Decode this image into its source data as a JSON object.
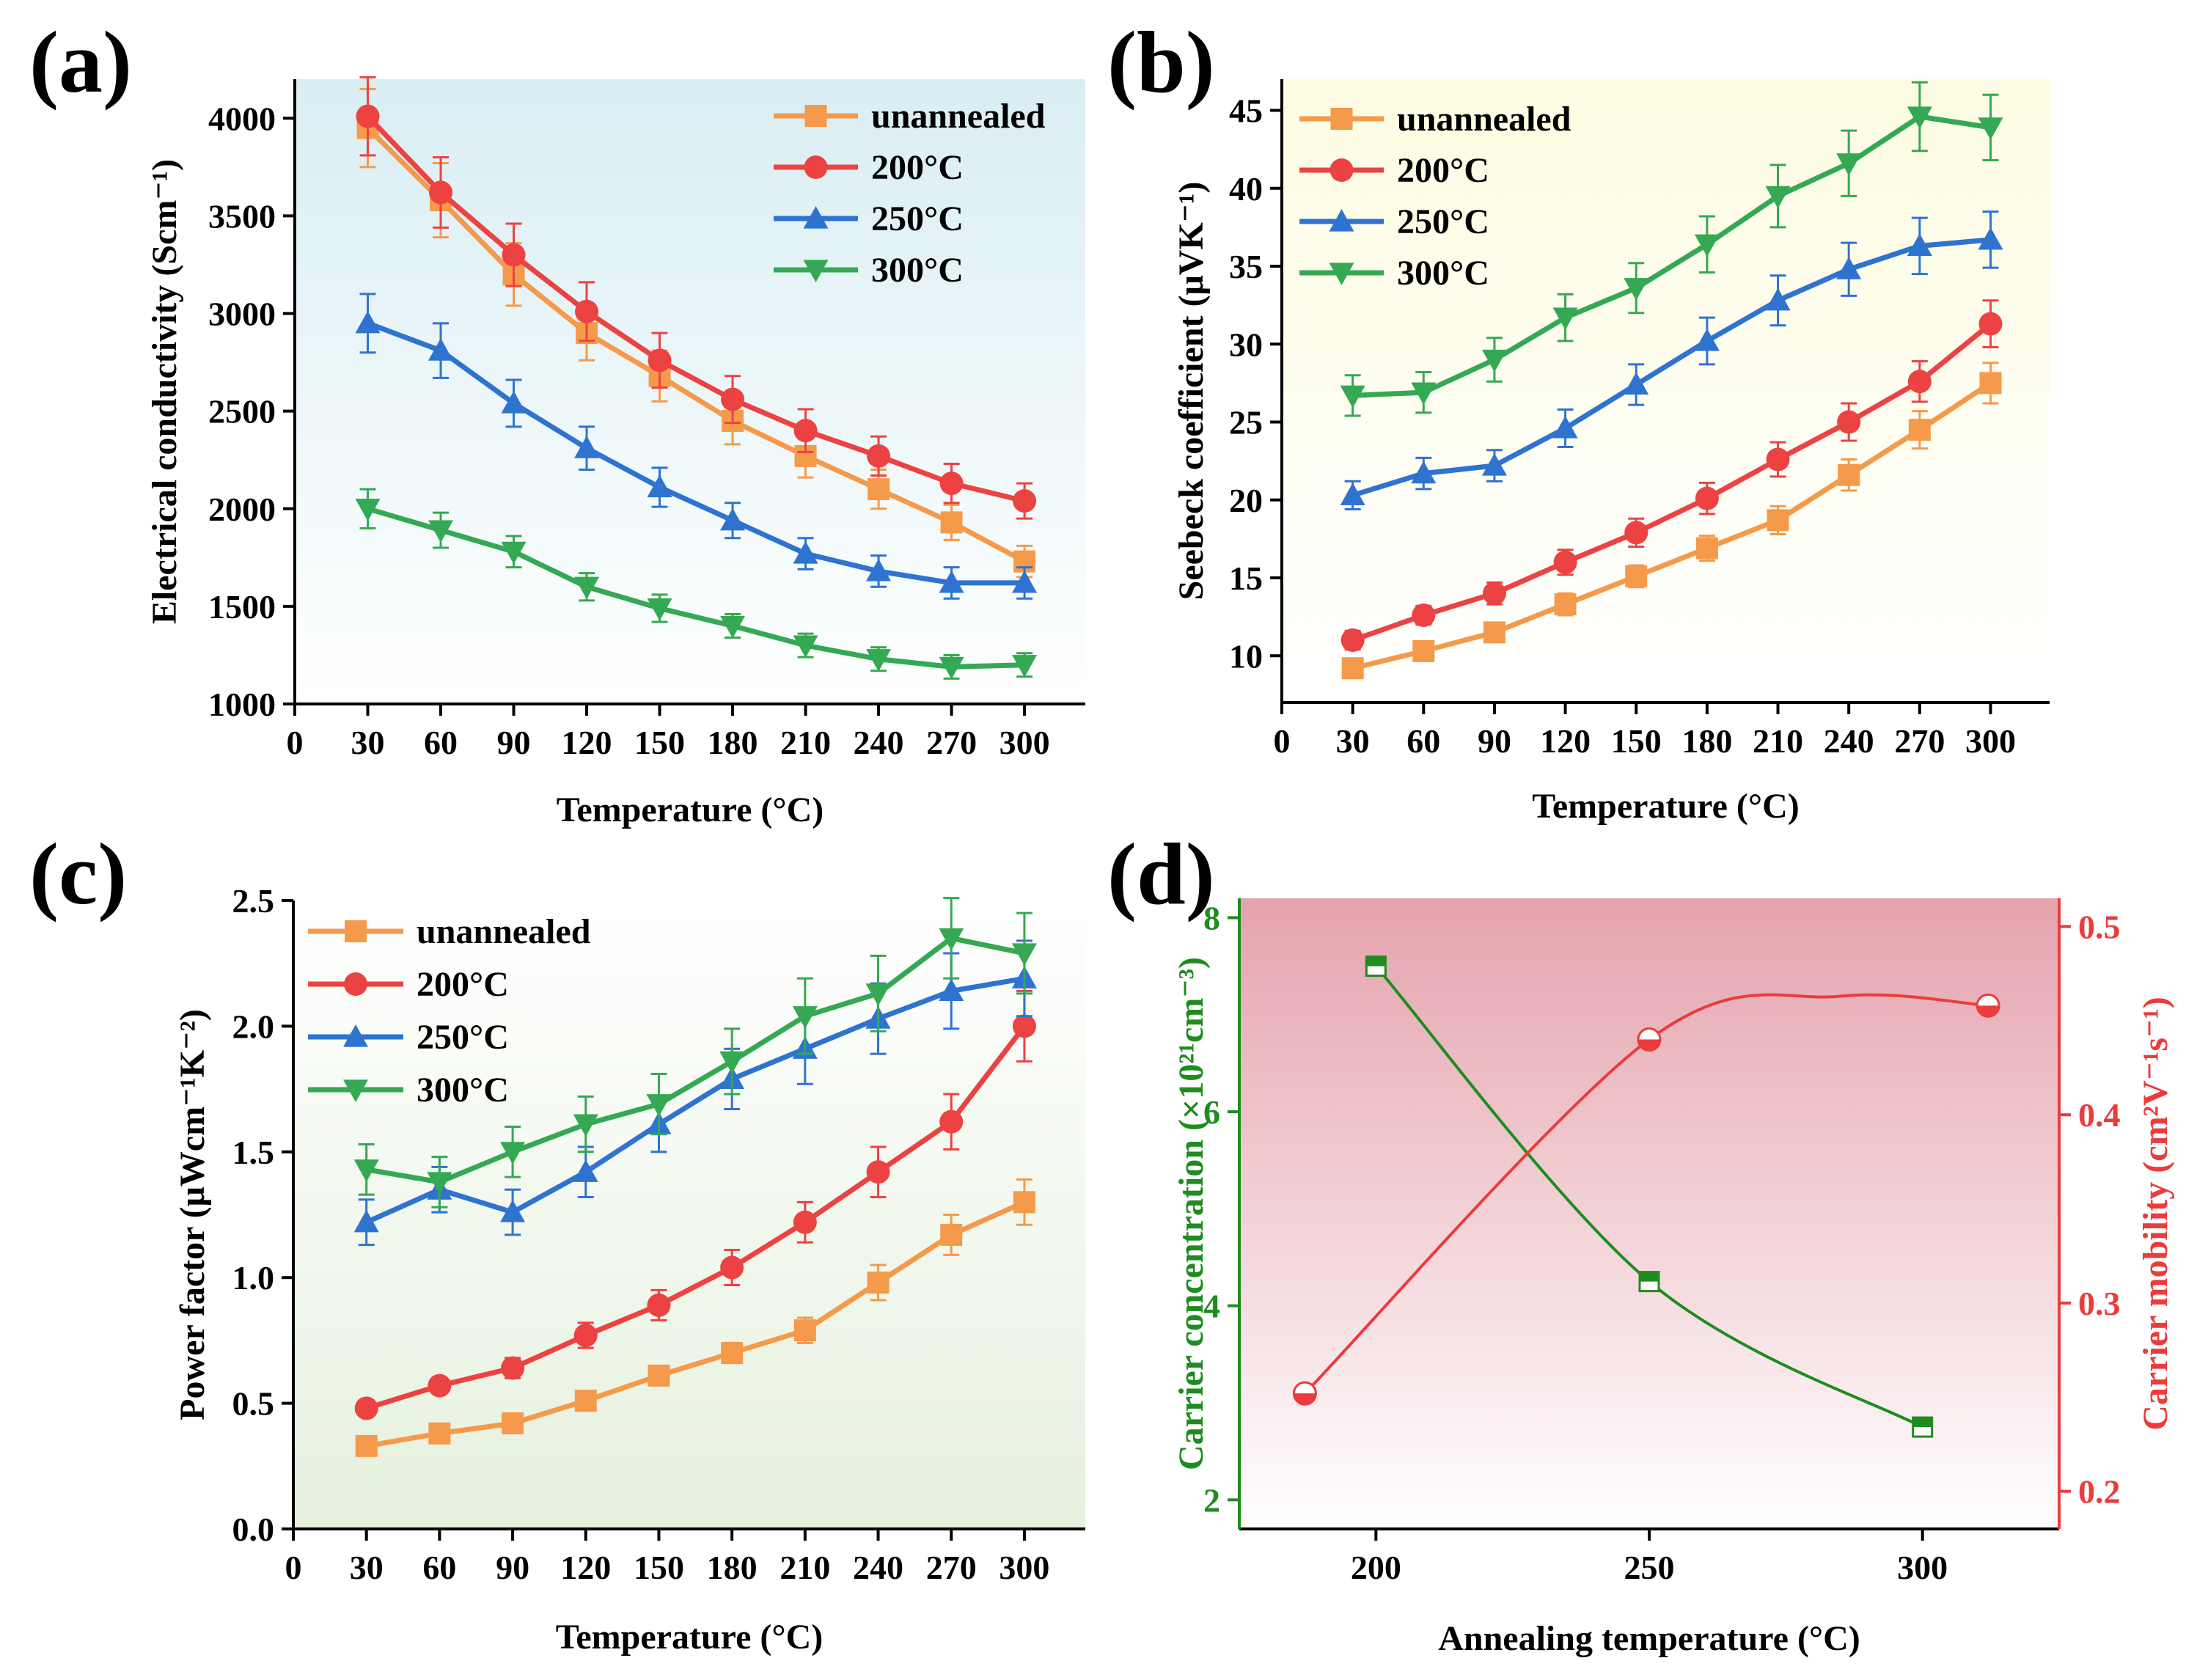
{
  "chart_data": [
    {
      "id": "a",
      "type": "line",
      "panel_label": "(a)",
      "title": "",
      "xlabel": "Temperature (°C)",
      "ylabel": "Electrical conductivity (Scm⁻¹)",
      "xlim": [
        0,
        325
      ],
      "ylim": [
        1000,
        4200
      ],
      "xticks": [
        0,
        30,
        60,
        90,
        120,
        150,
        180,
        210,
        240,
        270,
        300
      ],
      "yticks": [
        1000,
        1500,
        2000,
        2500,
        3000,
        3500,
        4000
      ],
      "legend_position": "top-right",
      "background": "light-blue-gradient",
      "x": [
        30,
        60,
        90,
        120,
        150,
        180,
        210,
        240,
        270,
        300
      ],
      "series": [
        {
          "name": "unannealed",
          "color": "#f59a4a",
          "marker": "square",
          "values": [
            3950,
            3580,
            3200,
            2900,
            2680,
            2450,
            2270,
            2100,
            1930,
            1730
          ],
          "errors": [
            200,
            190,
            160,
            140,
            130,
            120,
            110,
            100,
            90,
            80
          ]
        },
        {
          "name": "200°C",
          "color": "#ec4242",
          "marker": "circle",
          "values": [
            4010,
            3620,
            3300,
            3010,
            2760,
            2560,
            2400,
            2270,
            2130,
            2040
          ],
          "errors": [
            200,
            180,
            160,
            150,
            140,
            120,
            110,
            100,
            100,
            90
          ]
        },
        {
          "name": "250°C",
          "color": "#2f73d0",
          "marker": "triangle-up",
          "values": [
            2950,
            2810,
            2540,
            2310,
            2110,
            1940,
            1770,
            1680,
            1620,
            1620
          ],
          "errors": [
            150,
            140,
            120,
            110,
            100,
            90,
            80,
            80,
            80,
            80
          ]
        },
        {
          "name": "300°C",
          "color": "#35a853",
          "marker": "triangle-down",
          "values": [
            2000,
            1890,
            1780,
            1600,
            1490,
            1400,
            1300,
            1230,
            1190,
            1200
          ],
          "errors": [
            100,
            90,
            80,
            70,
            70,
            60,
            60,
            60,
            60,
            60
          ]
        }
      ]
    },
    {
      "id": "b",
      "type": "line",
      "panel_label": "(b)",
      "title": "",
      "xlabel": "Temperature (°C)",
      "ylabel": "Seebeck coefficient (μVK⁻¹)",
      "xlim": [
        0,
        325
      ],
      "ylim": [
        7,
        47
      ],
      "xticks": [
        0,
        30,
        60,
        90,
        120,
        150,
        180,
        210,
        240,
        270,
        300
      ],
      "yticks": [
        10,
        15,
        20,
        25,
        30,
        35,
        40,
        45
      ],
      "legend_position": "top-left",
      "background": "light-yellow-gradient",
      "x": [
        30,
        60,
        90,
        120,
        150,
        180,
        210,
        240,
        270,
        300
      ],
      "series": [
        {
          "name": "unannealed",
          "color": "#f59a4a",
          "marker": "square",
          "values": [
            9.2,
            10.3,
            11.5,
            13.3,
            15.1,
            16.9,
            18.7,
            21.6,
            24.5,
            27.5
          ],
          "errors": [
            0.6,
            0.6,
            0.6,
            0.7,
            0.7,
            0.8,
            0.9,
            1.0,
            1.2,
            1.3
          ]
        },
        {
          "name": "200°C",
          "color": "#ec4242",
          "marker": "circle",
          "values": [
            11.0,
            12.6,
            14.0,
            16.0,
            17.9,
            20.1,
            22.6,
            25.0,
            27.6,
            31.3
          ],
          "errors": [
            0.6,
            0.6,
            0.7,
            0.8,
            0.9,
            1.0,
            1.1,
            1.2,
            1.3,
            1.5
          ]
        },
        {
          "name": "250°C",
          "color": "#2f73d0",
          "marker": "triangle-up",
          "values": [
            20.3,
            21.7,
            22.2,
            24.6,
            27.4,
            30.2,
            32.8,
            34.8,
            36.3,
            36.7
          ],
          "errors": [
            0.9,
            1.0,
            1.0,
            1.2,
            1.3,
            1.5,
            1.6,
            1.7,
            1.8,
            1.8
          ]
        },
        {
          "name": "300°C",
          "color": "#35a853",
          "marker": "triangle-down",
          "values": [
            26.7,
            26.9,
            29.0,
            31.7,
            33.6,
            36.4,
            39.5,
            41.6,
            44.6,
            43.9
          ],
          "errors": [
            1.3,
            1.3,
            1.4,
            1.5,
            1.6,
            1.8,
            2.0,
            2.1,
            2.2,
            2.1
          ]
        }
      ]
    },
    {
      "id": "c",
      "type": "line",
      "panel_label": "(c)",
      "title": "",
      "xlabel": "Temperature (°C)",
      "ylabel": "Power factor (μWcm⁻¹K⁻²)",
      "xlim": [
        0,
        325
      ],
      "ylim": [
        0,
        2.5
      ],
      "xticks": [
        0,
        30,
        60,
        90,
        120,
        150,
        180,
        210,
        240,
        270,
        300
      ],
      "yticks": [
        0.0,
        0.5,
        1.0,
        1.5,
        2.0,
        2.5
      ],
      "ytick_labels": [
        "0.0",
        "0.5",
        "1.0",
        "1.5",
        "2.0",
        "2.5"
      ],
      "legend_position": "top-left",
      "background": "light-green-gradient",
      "x": [
        30,
        60,
        90,
        120,
        150,
        180,
        210,
        240,
        270,
        300
      ],
      "series": [
        {
          "name": "unannealed",
          "color": "#f59a4a",
          "marker": "square",
          "values": [
            0.33,
            0.38,
            0.42,
            0.51,
            0.61,
            0.7,
            0.79,
            0.98,
            1.17,
            1.3
          ],
          "errors": [
            0.02,
            0.02,
            0.03,
            0.03,
            0.03,
            0.04,
            0.05,
            0.07,
            0.08,
            0.09
          ]
        },
        {
          "name": "200°C",
          "color": "#ec4242",
          "marker": "circle",
          "values": [
            0.48,
            0.57,
            0.64,
            0.77,
            0.89,
            1.04,
            1.22,
            1.42,
            1.62,
            2.0
          ],
          "errors": [
            0.03,
            0.03,
            0.04,
            0.05,
            0.06,
            0.07,
            0.08,
            0.1,
            0.11,
            0.14
          ]
        },
        {
          "name": "250°C",
          "color": "#2f73d0",
          "marker": "triangle-up",
          "values": [
            1.22,
            1.35,
            1.26,
            1.42,
            1.61,
            1.79,
            1.91,
            2.03,
            2.14,
            2.19
          ],
          "errors": [
            0.09,
            0.09,
            0.09,
            0.1,
            0.11,
            0.12,
            0.14,
            0.14,
            0.15,
            0.15
          ]
        },
        {
          "name": "300°C",
          "color": "#35a853",
          "marker": "triangle-down",
          "values": [
            1.43,
            1.38,
            1.5,
            1.61,
            1.69,
            1.86,
            2.04,
            2.13,
            2.35,
            2.29
          ],
          "errors": [
            0.1,
            0.1,
            0.1,
            0.11,
            0.12,
            0.13,
            0.15,
            0.15,
            0.16,
            0.16
          ]
        }
      ]
    },
    {
      "id": "d",
      "type": "scatter",
      "panel_label": "(d)",
      "title": "",
      "xlabel": "Annealing temperature (°C)",
      "ylabel_left": "Carrier concentration (×10²¹cm⁻³)",
      "ylabel_right": "Carrier mobility (cm²V⁻¹s⁻¹)",
      "xlim": [
        175,
        325
      ],
      "ylim_left": [
        1.7,
        8.2
      ],
      "ylim_right": [
        0.18,
        0.515
      ],
      "xticks": [
        200,
        250,
        300
      ],
      "yticks_left": [
        2,
        4,
        6,
        8
      ],
      "yticks_right": [
        0.2,
        0.3,
        0.4,
        0.5
      ],
      "ytick_labels_right": [
        "0.2",
        "0.3",
        "0.4",
        "0.5"
      ],
      "background": "pink-gradient",
      "series": [
        {
          "name": "Carrier concentration",
          "axis": "left",
          "color": "#1e8c1e",
          "marker": "half-square",
          "x": [
            200,
            250,
            300
          ],
          "values": [
            7.5,
            4.25,
            2.75
          ]
        },
        {
          "name": "Carrier mobility",
          "axis": "right",
          "color": "#ec3b3b",
          "marker": "half-circle",
          "x": [
            187,
            250,
            312
          ],
          "values": [
            0.252,
            0.44,
            0.458
          ]
        }
      ]
    }
  ]
}
